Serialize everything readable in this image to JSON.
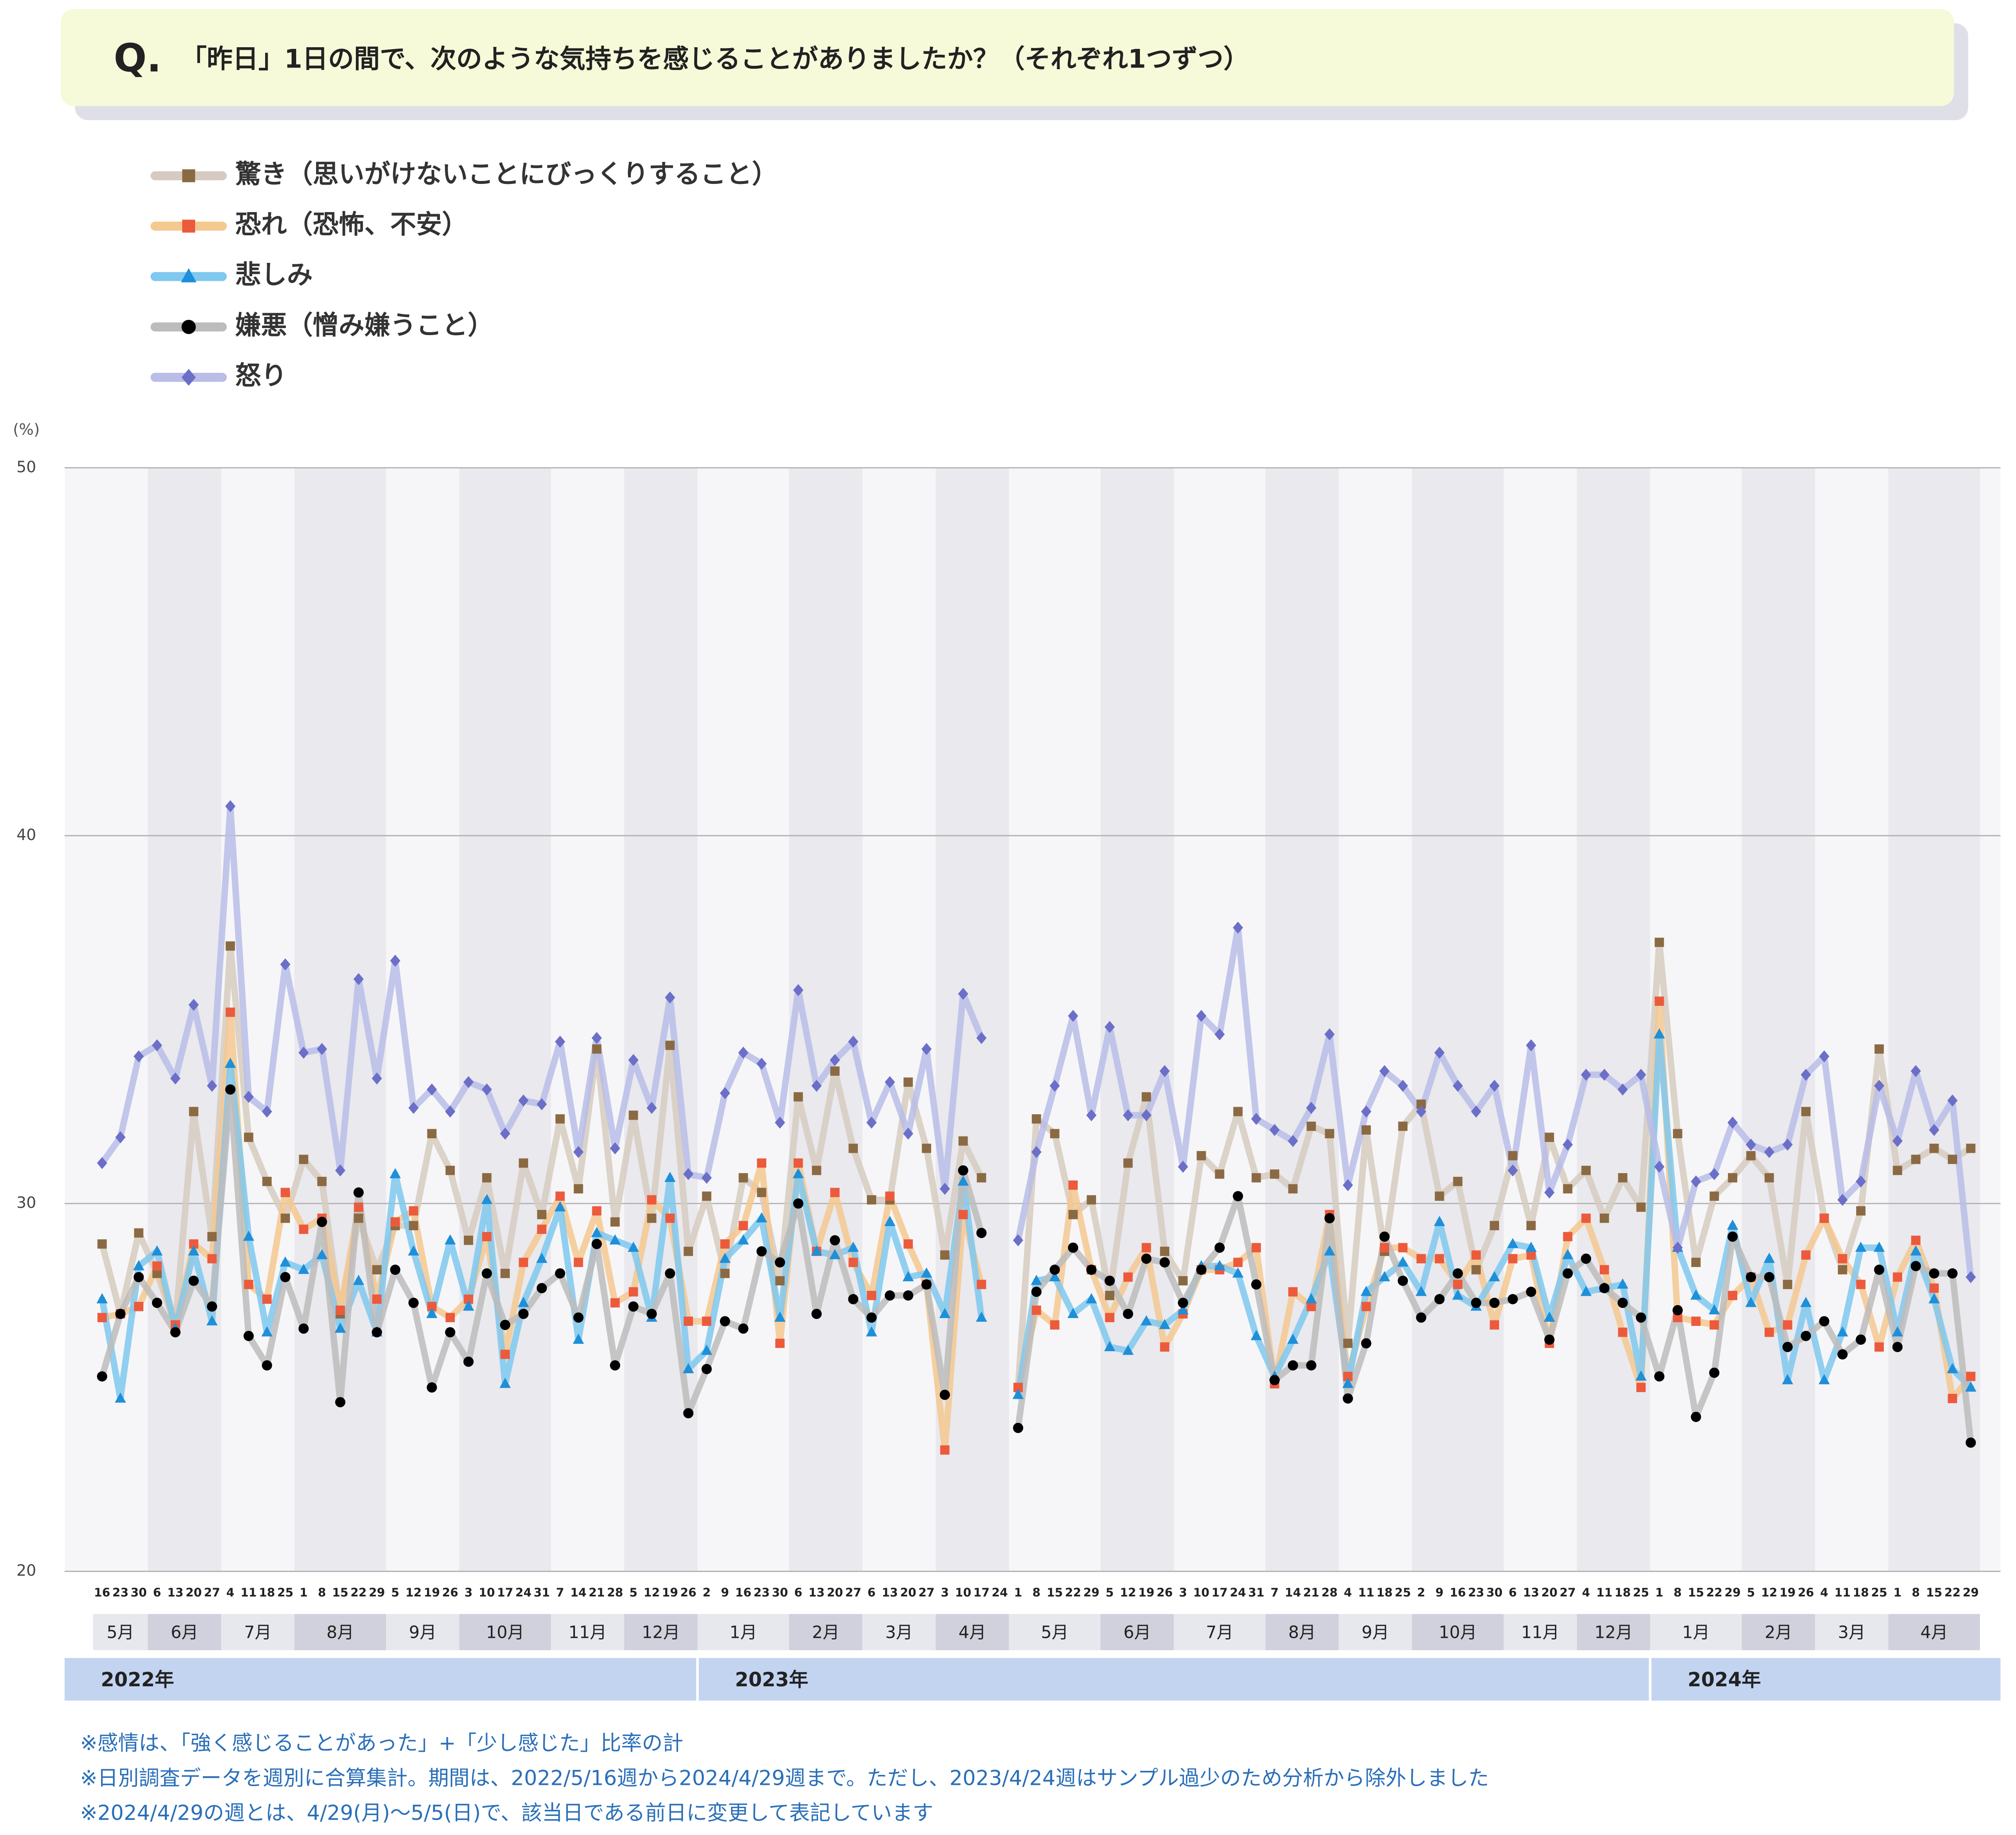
{
  "chart_data": {
    "type": "line",
    "question_label": "Q.",
    "title": "「昨日」1日の間で、次のような気持ちを感じることがありましたか？（それぞれ1つずつ）",
    "y_unit": "(%)",
    "ylim": [
      20,
      50
    ],
    "yticks": [
      20,
      30,
      40,
      50
    ],
    "grid": true,
    "years": [
      {
        "label": "2022年",
        "months": [
          {
            "label": "5月",
            "days": [
              16,
              23,
              30
            ]
          },
          {
            "label": "6月",
            "days": [
              6,
              13,
              20,
              27
            ]
          },
          {
            "label": "7月",
            "days": [
              4,
              11,
              18,
              25
            ]
          },
          {
            "label": "8月",
            "days": [
              1,
              8,
              15,
              22,
              29
            ]
          },
          {
            "label": "9月",
            "days": [
              5,
              12,
              19,
              26
            ]
          },
          {
            "label": "10月",
            "days": [
              3,
              10,
              17,
              24,
              31
            ]
          },
          {
            "label": "11月",
            "days": [
              7,
              14,
              21,
              28
            ]
          },
          {
            "label": "12月",
            "days": [
              5,
              12,
              19,
              26
            ]
          }
        ]
      },
      {
        "label": "2023年",
        "months": [
          {
            "label": "1月",
            "days": [
              2,
              9,
              16,
              23,
              30
            ]
          },
          {
            "label": "2月",
            "days": [
              6,
              13,
              20,
              27
            ]
          },
          {
            "label": "3月",
            "days": [
              6,
              13,
              20,
              27
            ]
          },
          {
            "label": "4月",
            "days": [
              3,
              10,
              17,
              24
            ]
          },
          {
            "label": "5月",
            "days": [
              1,
              8,
              15,
              22,
              29
            ]
          },
          {
            "label": "6月",
            "days": [
              5,
              12,
              19,
              26
            ]
          },
          {
            "label": "7月",
            "days": [
              3,
              10,
              17,
              24,
              31
            ]
          },
          {
            "label": "8月",
            "days": [
              7,
              14,
              21,
              28
            ]
          },
          {
            "label": "9月",
            "days": [
              4,
              11,
              18,
              25
            ]
          },
          {
            "label": "10月",
            "days": [
              2,
              9,
              16,
              23,
              30
            ]
          },
          {
            "label": "11月",
            "days": [
              6,
              13,
              20,
              27
            ]
          },
          {
            "label": "12月",
            "days": [
              4,
              11,
              18,
              25
            ]
          }
        ]
      },
      {
        "label": "2024年",
        "months": [
          {
            "label": "1月",
            "days": [
              1,
              8,
              15,
              22,
              29
            ]
          },
          {
            "label": "2月",
            "days": [
              5,
              12,
              19,
              26
            ]
          },
          {
            "label": "3月",
            "days": [
              4,
              11,
              18,
              25
            ]
          },
          {
            "label": "4月",
            "days": [
              1,
              8,
              15,
              22,
              29
            ]
          }
        ]
      }
    ],
    "series": [
      {
        "name": "驚き（思いがけないことにびっくりすること）",
        "color": "#d6cbc0",
        "marker_color": "#8b6a43",
        "marker": "square",
        "values": [
          28.9,
          27.0,
          29.2,
          28.1,
          26.7,
          32.5,
          29.1,
          37.0,
          31.8,
          30.6,
          29.6,
          31.2,
          30.6,
          27.0,
          29.6,
          28.2,
          29.4,
          29.4,
          31.9,
          30.9,
          29.0,
          30.7,
          28.1,
          31.1,
          29.7,
          32.3,
          30.4,
          34.2,
          29.5,
          32.4,
          29.6,
          34.3,
          28.7,
          30.2,
          28.1,
          30.7,
          30.3,
          27.9,
          32.9,
          30.9,
          33.6,
          31.5,
          30.1,
          30.1,
          33.3,
          31.5,
          28.6,
          31.7,
          30.7,
          null,
          25.0,
          32.3,
          31.9,
          29.7,
          30.1,
          27.5,
          31.1,
          32.9,
          28.7,
          27.9,
          31.3,
          30.8,
          32.5,
          30.7,
          30.8,
          30.4,
          32.1,
          31.9,
          26.2,
          32.0,
          28.7,
          32.1,
          32.7,
          30.2,
          30.6,
          28.2,
          29.4,
          31.3,
          29.4,
          31.8,
          30.4,
          30.9,
          29.6,
          30.7,
          29.9,
          37.1,
          31.9,
          28.4,
          30.2,
          30.7,
          31.3,
          30.7,
          27.8,
          32.5,
          29.6,
          28.2,
          29.8,
          34.2,
          30.9,
          31.2,
          31.5,
          31.2,
          31.5
        ]
      },
      {
        "name": "恐れ（恐怖、不安）",
        "color": "#f4c88f",
        "marker_color": "#ec5a3c",
        "marker": "square",
        "values": [
          26.9,
          27.0,
          27.2,
          28.3,
          26.7,
          28.9,
          28.5,
          35.2,
          27.8,
          27.4,
          30.3,
          29.3,
          29.6,
          27.1,
          29.9,
          27.4,
          29.5,
          29.8,
          27.2,
          26.9,
          27.4,
          29.1,
          25.9,
          28.4,
          29.3,
          30.2,
          28.4,
          29.8,
          27.3,
          27.6,
          30.1,
          29.6,
          26.8,
          26.8,
          28.9,
          29.4,
          31.1,
          26.2,
          31.1,
          28.7,
          30.3,
          28.4,
          27.5,
          30.2,
          28.9,
          27.8,
          23.3,
          29.7,
          27.8,
          null,
          25.0,
          27.1,
          26.7,
          30.5,
          28.2,
          26.9,
          28.0,
          28.8,
          26.1,
          27.0,
          28.2,
          28.2,
          28.4,
          28.8,
          25.1,
          27.6,
          27.2,
          29.7,
          25.3,
          27.2,
          28.8,
          28.8,
          28.5,
          28.5,
          27.8,
          28.6,
          26.7,
          28.5,
          28.6,
          26.2,
          29.1,
          29.6,
          28.2,
          26.5,
          25.0,
          35.5,
          26.9,
          26.8,
          26.7,
          27.5,
          28.0,
          26.5,
          26.7,
          28.6,
          29.6,
          28.5,
          27.8,
          26.1,
          28.0,
          29.0,
          27.7,
          24.7,
          25.3
        ]
      },
      {
        "name": "悲しみ",
        "color": "#7fc8ef",
        "marker_color": "#1e8fd8",
        "marker": "triangle",
        "values": [
          27.4,
          24.7,
          28.3,
          28.7,
          26.6,
          28.7,
          26.8,
          33.8,
          29.1,
          26.5,
          28.4,
          28.2,
          28.6,
          26.6,
          27.9,
          26.5,
          30.8,
          28.7,
          27.0,
          29.0,
          27.2,
          30.1,
          25.1,
          27.3,
          28.5,
          29.9,
          26.3,
          29.2,
          29.0,
          28.8,
          26.9,
          30.7,
          25.5,
          26.0,
          28.5,
          29.0,
          29.6,
          26.9,
          30.8,
          28.7,
          28.6,
          28.8,
          26.5,
          29.5,
          28.0,
          28.1,
          27.0,
          30.6,
          26.9,
          null,
          24.8,
          27.9,
          28.0,
          27.0,
          27.4,
          26.1,
          26.0,
          26.8,
          26.7,
          27.1,
          28.3,
          28.3,
          28.1,
          26.4,
          25.3,
          26.3,
          27.4,
          28.7,
          25.1,
          27.6,
          28.0,
          28.4,
          27.6,
          29.5,
          27.5,
          27.2,
          28.0,
          28.9,
          28.8,
          26.9,
          28.6,
          27.6,
          27.7,
          27.8,
          25.3,
          34.6,
          28.8,
          27.5,
          27.1,
          29.4,
          27.3,
          28.5,
          25.2,
          27.3,
          25.2,
          26.5,
          28.8,
          28.8,
          26.5,
          28.7,
          27.4,
          25.5,
          25.0
        ]
      },
      {
        "name": "嫌悪（憎み嫌うこと）",
        "color": "#bcbcbc",
        "marker_color": "#000000",
        "marker": "circle",
        "values": [
          25.3,
          27.0,
          28.0,
          27.3,
          26.5,
          27.9,
          27.2,
          33.1,
          26.4,
          25.6,
          28.0,
          26.6,
          29.5,
          24.6,
          30.3,
          26.5,
          28.2,
          27.3,
          25.0,
          26.5,
          25.7,
          28.1,
          26.7,
          27.0,
          27.7,
          28.1,
          26.9,
          28.9,
          25.6,
          27.2,
          27.0,
          28.1,
          24.3,
          25.5,
          26.8,
          26.6,
          28.7,
          28.4,
          30.0,
          27.0,
          29.0,
          27.4,
          26.9,
          27.5,
          27.5,
          27.8,
          24.8,
          30.9,
          29.2,
          null,
          23.9,
          27.6,
          28.2,
          28.8,
          28.2,
          27.9,
          27.0,
          28.5,
          28.4,
          27.3,
          28.2,
          28.8,
          30.2,
          27.8,
          25.2,
          25.6,
          25.6,
          29.6,
          24.7,
          26.2,
          29.1,
          27.9,
          26.9,
          27.4,
          28.1,
          27.3,
          27.3,
          27.4,
          27.6,
          26.3,
          28.1,
          28.5,
          27.7,
          27.3,
          26.9,
          25.3,
          27.1,
          24.2,
          25.4,
          29.1,
          28.0,
          28.0,
          26.1,
          26.4,
          26.8,
          25.9,
          26.3,
          28.2,
          26.1,
          28.3,
          28.1,
          28.1,
          23.5
        ]
      },
      {
        "name": "怒り",
        "color": "#b9bde7",
        "marker_color": "#6b6fc8",
        "marker": "diamond",
        "values": [
          31.1,
          31.8,
          34.0,
          34.3,
          33.4,
          35.4,
          33.2,
          40.8,
          32.9,
          32.5,
          36.5,
          34.1,
          34.2,
          30.9,
          36.1,
          33.4,
          36.6,
          32.6,
          33.1,
          32.5,
          33.3,
          33.1,
          31.9,
          32.8,
          32.7,
          34.4,
          31.4,
          34.5,
          31.5,
          33.9,
          32.6,
          35.6,
          30.8,
          30.7,
          33.0,
          34.1,
          33.8,
          32.2,
          35.8,
          33.2,
          33.9,
          34.4,
          32.2,
          33.3,
          31.9,
          34.2,
          30.4,
          35.7,
          34.5,
          null,
          29.0,
          31.4,
          33.2,
          35.1,
          32.4,
          34.8,
          32.4,
          32.4,
          33.6,
          31.0,
          35.1,
          34.6,
          37.5,
          32.3,
          32.0,
          31.7,
          32.6,
          34.6,
          30.5,
          32.5,
          33.6,
          33.2,
          32.5,
          34.1,
          33.2,
          32.5,
          33.2,
          30.9,
          34.3,
          30.3,
          31.6,
          33.5,
          33.5,
          33.1,
          33.5,
          31.0,
          28.8,
          30.6,
          30.8,
          32.2,
          31.6,
          31.4,
          31.6,
          33.5,
          34.0,
          30.1,
          30.6,
          33.2,
          31.7,
          33.6,
          32.0,
          32.8,
          28.0
        ]
      }
    ],
    "notes": [
      "※感情は、「強く感じることがあった」+「少し感じた」比率の計",
      "※日別調査データを週別に合算集計。期間は、2022/5/16週から2024/4/29週まで。ただし、2023/4/24週はサンプル過少のため分析から除外しました",
      "※2024/4/29の週とは、4/29(月)～5/5(日)で、該当日である前日に変更して表記しています"
    ]
  }
}
